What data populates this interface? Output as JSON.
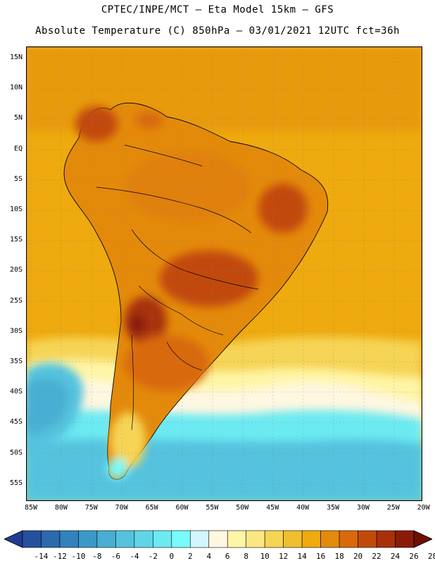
{
  "header": {
    "line1": "CPTEC/INPE/MCT –  Eta Model 15km – GFS",
    "line2": "Absolute Temperature (C) 850hPa – 03/01/2021 12UTC fct=36h"
  },
  "map": {
    "lat_labels": [
      "15N",
      "10N",
      "5N",
      "EQ",
      "5S",
      "10S",
      "15S",
      "20S",
      "25S",
      "30S",
      "35S",
      "40S",
      "45S",
      "50S",
      "55S"
    ],
    "lon_labels": [
      "85W",
      "80W",
      "75W",
      "70W",
      "65W",
      "60W",
      "55W",
      "50W",
      "45W",
      "40W",
      "35W",
      "30W",
      "25W",
      "20W"
    ]
  },
  "colorbar": {
    "labels": [
      "-14",
      "-12",
      "-10",
      "-8",
      "-6",
      "-4",
      "-2",
      "0",
      "2",
      "4",
      "6",
      "8",
      "10",
      "12",
      "14",
      "16",
      "18",
      "20",
      "22",
      "24",
      "26",
      "28"
    ],
    "colors": [
      "#1f3c8f",
      "#25509e",
      "#2b6aae",
      "#3382bd",
      "#3b99c8",
      "#48aed3",
      "#55c3de",
      "#5fd6e8",
      "#6ceaf2",
      "#79fbfb",
      "#d2f6fb",
      "#fff7e0",
      "#fff5a6",
      "#fbe782",
      "#f6d454",
      "#f0bf2e",
      "#eeaa0e",
      "#e48a0b",
      "#d9690a",
      "#c24a09",
      "#a93008",
      "#8a1b07",
      "#6e0e05"
    ]
  }
}
